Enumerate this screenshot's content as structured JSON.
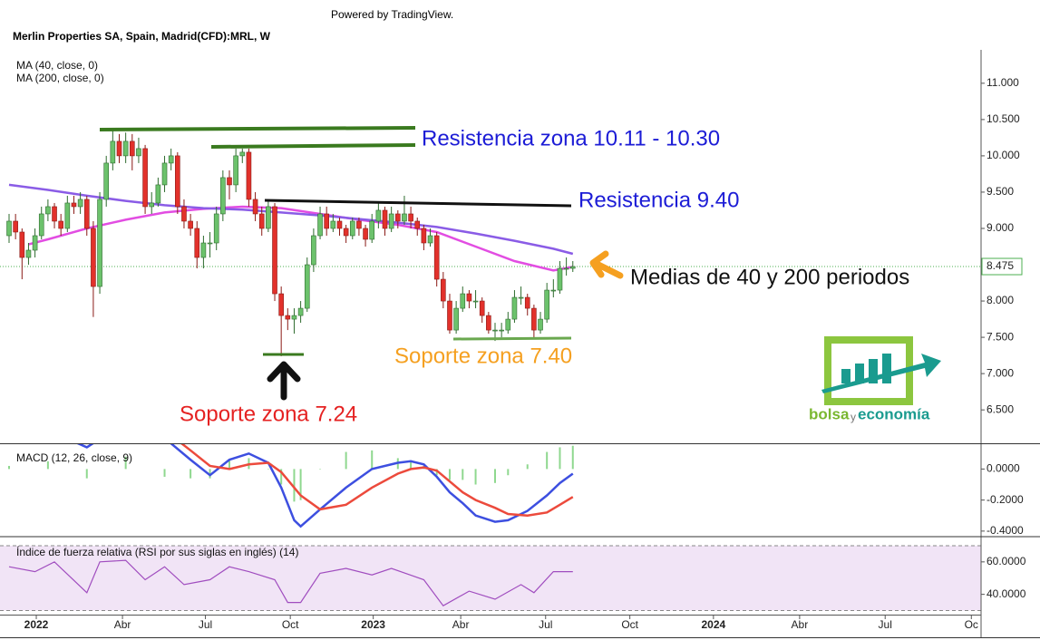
{
  "header": {
    "powered": "Powered by TradingView.",
    "title": "Merlin Properties SA, Spain, Madrid(CFD):MRL, W"
  },
  "logo": {
    "part1": "bolsa",
    "part2": "y",
    "part3": "economía"
  },
  "chart_data": [
    {
      "type": "candlestick",
      "xlim": [
        -1.4,
        150
      ],
      "xticks": [
        {
          "value": 4.2,
          "label": "2022"
        },
        {
          "value": 17.5,
          "label": "Abr"
        },
        {
          "value": 30.3,
          "label": "Jul"
        },
        {
          "value": 43.4,
          "label": "Oct"
        },
        {
          "value": 56.2,
          "label": "2023"
        },
        {
          "value": 69.7,
          "label": "Abr"
        },
        {
          "value": 82.8,
          "label": "Jul"
        },
        {
          "value": 95.8,
          "label": "Oct"
        },
        {
          "value": 108.7,
          "label": "2024"
        },
        {
          "value": 122,
          "label": "Abr"
        },
        {
          "value": 135.2,
          "label": "Jul"
        },
        {
          "value": 148.5,
          "label": "Oc"
        }
      ],
      "ylim": [
        6.04,
        11.46
      ],
      "yticks": [
        {
          "value": 6.5,
          "label": "6.500"
        },
        {
          "value": 7,
          "label": "7.000"
        },
        {
          "value": 7.5,
          "label": "7.500"
        },
        {
          "value": 8,
          "label": "8.000"
        },
        {
          "value": 8.5,
          "label": "8.500"
        },
        {
          "value": 9,
          "label": "9.000"
        },
        {
          "value": 9.5,
          "label": "9.500"
        },
        {
          "value": 10,
          "label": "10.000"
        },
        {
          "value": 10.5,
          "label": "10.500"
        },
        {
          "value": 11,
          "label": "11.000"
        }
      ],
      "colors": {
        "up": "#6cc26c",
        "up_edge": "#2e6b2e",
        "down": "#e2312b",
        "down_edge": "#8a1a16"
      },
      "last_price": {
        "value": 8.475,
        "label": "8.475",
        "color": "#4caf50"
      },
      "candles": [
        [
          8.9,
          9.2,
          8.8,
          9.1
        ],
        [
          9.1,
          9.2,
          8.85,
          8.95
        ],
        [
          8.95,
          9.0,
          8.3,
          8.6
        ],
        [
          8.6,
          8.8,
          8.5,
          8.7
        ],
        [
          8.7,
          9.0,
          8.6,
          8.9
        ],
        [
          8.9,
          9.3,
          8.85,
          9.2
        ],
        [
          9.2,
          9.4,
          9.1,
          9.3
        ],
        [
          9.3,
          9.35,
          9.0,
          9.1
        ],
        [
          9.1,
          9.2,
          8.9,
          9.0
        ],
        [
          9.0,
          9.45,
          8.95,
          9.35
        ],
        [
          9.35,
          9.45,
          9.2,
          9.3
        ],
        [
          9.3,
          9.5,
          9.2,
          9.4
        ],
        [
          9.4,
          9.45,
          8.9,
          9.0
        ],
        [
          9.0,
          9.1,
          7.78,
          8.2
        ],
        [
          8.2,
          9.5,
          8.1,
          9.4
        ],
        [
          9.4,
          10.0,
          9.3,
          9.9
        ],
        [
          9.9,
          10.35,
          9.8,
          10.2
        ],
        [
          10.2,
          10.3,
          9.9,
          10.0
        ],
        [
          10.0,
          10.32,
          9.9,
          10.2
        ],
        [
          10.2,
          10.3,
          9.8,
          10.0
        ],
        [
          10.0,
          10.25,
          9.9,
          10.1
        ],
        [
          10.1,
          10.15,
          9.2,
          9.3
        ],
        [
          9.3,
          9.5,
          9.2,
          9.35
        ],
        [
          9.35,
          9.7,
          9.3,
          9.6
        ],
        [
          9.6,
          10.0,
          9.5,
          9.9
        ],
        [
          9.9,
          10.1,
          9.8,
          10.0
        ],
        [
          10.0,
          10.05,
          9.2,
          9.3
        ],
        [
          9.3,
          9.4,
          9.0,
          9.1
        ],
        [
          9.1,
          9.2,
          8.9,
          9.0
        ],
        [
          9.0,
          9.1,
          8.45,
          8.6
        ],
        [
          8.6,
          8.9,
          8.45,
          8.8
        ],
        [
          8.8,
          8.95,
          8.6,
          8.8
        ],
        [
          8.8,
          9.3,
          8.7,
          9.2
        ],
        [
          9.2,
          9.8,
          9.1,
          9.7
        ],
        [
          9.7,
          9.8,
          9.4,
          9.6
        ],
        [
          9.6,
          10.1,
          9.5,
          10.0
        ],
        [
          10.0,
          10.1,
          9.9,
          10.05
        ],
        [
          10.05,
          10.1,
          9.3,
          9.4
        ],
        [
          9.4,
          9.5,
          9.1,
          9.2
        ],
        [
          9.2,
          9.3,
          8.9,
          9.0
        ],
        [
          9.0,
          9.4,
          8.95,
          9.3
        ],
        [
          9.3,
          9.35,
          8.0,
          8.1
        ],
        [
          8.1,
          8.2,
          7.24,
          7.8
        ],
        [
          7.8,
          7.9,
          7.6,
          7.75
        ],
        [
          7.75,
          7.9,
          7.55,
          7.8
        ],
        [
          7.8,
          8.0,
          7.7,
          7.9
        ],
        [
          7.9,
          8.6,
          7.85,
          8.5
        ],
        [
          8.5,
          9.0,
          8.4,
          8.9
        ],
        [
          8.9,
          9.3,
          8.85,
          9.2
        ],
        [
          9.2,
          9.3,
          8.9,
          9.0
        ],
        [
          9.0,
          9.2,
          8.95,
          9.1
        ],
        [
          9.1,
          9.15,
          8.9,
          9.0
        ],
        [
          9.0,
          9.05,
          8.8,
          8.9
        ],
        [
          8.9,
          9.15,
          8.85,
          9.1
        ],
        [
          9.1,
          9.15,
          8.9,
          9.0
        ],
        [
          9.0,
          9.05,
          8.75,
          8.85
        ],
        [
          8.85,
          9.2,
          8.8,
          9.1
        ],
        [
          9.1,
          9.35,
          9.0,
          9.25
        ],
        [
          9.25,
          9.3,
          8.9,
          9.0
        ],
        [
          9.0,
          9.3,
          8.95,
          9.2
        ],
        [
          9.2,
          9.25,
          9.0,
          9.1
        ],
        [
          9.1,
          9.45,
          9.05,
          9.2
        ],
        [
          9.2,
          9.3,
          9.0,
          9.1
        ],
        [
          9.1,
          9.15,
          8.9,
          9.0
        ],
        [
          9.0,
          9.05,
          8.7,
          8.8
        ],
        [
          8.8,
          9.0,
          8.75,
          8.9
        ],
        [
          8.9,
          8.95,
          8.2,
          8.3
        ],
        [
          8.3,
          8.4,
          7.9,
          8.0
        ],
        [
          8.0,
          8.1,
          7.55,
          7.6
        ],
        [
          7.6,
          8.0,
          7.55,
          7.9
        ],
        [
          7.9,
          8.2,
          7.85,
          8.1
        ],
        [
          8.1,
          8.15,
          7.9,
          8.0
        ],
        [
          8.0,
          8.15,
          7.9,
          8.0
        ],
        [
          8.0,
          8.05,
          7.7,
          7.8
        ],
        [
          7.8,
          7.85,
          7.55,
          7.6
        ],
        [
          7.6,
          7.7,
          7.45,
          7.6
        ],
        [
          7.6,
          7.7,
          7.5,
          7.6
        ],
        [
          7.6,
          7.85,
          7.55,
          7.75
        ],
        [
          7.75,
          8.15,
          7.7,
          8.05
        ],
        [
          8.05,
          8.2,
          7.95,
          8.05
        ],
        [
          8.05,
          8.1,
          7.8,
          7.9
        ],
        [
          7.9,
          7.95,
          7.5,
          7.6
        ],
        [
          7.6,
          7.85,
          7.55,
          7.75
        ],
        [
          7.75,
          8.25,
          7.7,
          8.15
        ],
        [
          8.15,
          8.3,
          8.05,
          8.15
        ],
        [
          8.15,
          8.55,
          8.1,
          8.45
        ],
        [
          8.45,
          8.6,
          8.35,
          8.45
        ],
        [
          8.45,
          8.55,
          8.4,
          8.475
        ]
      ],
      "series": [
        {
          "name": "MA (40, close, 0)",
          "color": "#e24de2",
          "x": [
            3,
            6,
            12,
            18,
            24,
            30,
            36,
            42,
            48,
            54,
            60,
            66,
            72,
            78,
            84,
            87
          ],
          "values": [
            8.78,
            8.85,
            9.0,
            9.12,
            9.22,
            9.27,
            9.3,
            9.28,
            9.2,
            9.12,
            9.05,
            8.95,
            8.75,
            8.55,
            8.42,
            8.47
          ]
        },
        {
          "name": "MA (200, close, 0)",
          "color": "#8a5ce6",
          "x": [
            0,
            6,
            12,
            18,
            24,
            30,
            36,
            42,
            48,
            54,
            60,
            66,
            72,
            78,
            84,
            87
          ],
          "values": [
            9.6,
            9.53,
            9.45,
            9.38,
            9.32,
            9.28,
            9.26,
            9.22,
            9.18,
            9.13,
            9.08,
            9.02,
            8.93,
            8.83,
            8.72,
            8.65
          ]
        }
      ],
      "annotations": [
        {
          "text": "Resistencia zona 10.11 - 10.30",
          "color": "#1c1cd6"
        },
        {
          "text": "Resistencia 9.40",
          "color": "#1c1cd6"
        },
        {
          "text": "Medias de 40 y 200 periodos",
          "color": "#111111"
        },
        {
          "text": "Soporte zona 7.40",
          "color": "#f5a020"
        },
        {
          "text": "Soporte zona 7.24",
          "color": "#e52222"
        }
      ]
    },
    {
      "type": "macd",
      "title": "MACD (12, 26, close, 9)",
      "xlim": [
        -1.4,
        150
      ],
      "ylim": [
        -0.43,
        0.16
      ],
      "yticks": [
        {
          "value": -0.4,
          "label": "-0.4000"
        },
        {
          "value": -0.2,
          "label": "-0.2000"
        },
        {
          "value": 0,
          "label": "0.0000"
        }
      ],
      "x": [
        0,
        6,
        12,
        18,
        24,
        28,
        31,
        34,
        37,
        40,
        42,
        44,
        45,
        48,
        52,
        56,
        60,
        62,
        64,
        66,
        68,
        70,
        72,
        75,
        77,
        80,
        83,
        85,
        87
      ],
      "histogram_color": "#8fd88f",
      "histogram": [
        0.02,
        0.05,
        -0.06,
        0.08,
        -0.05,
        -0.06,
        -0.06,
        0.06,
        0.07,
        0,
        -0.1,
        -0.21,
        -0.2,
        0,
        0.11,
        0.12,
        0.07,
        0.05,
        0.02,
        -0.04,
        -0.07,
        -0.07,
        -0.1,
        -0.09,
        -0.04,
        0.03,
        0.11,
        0.14,
        0.15
      ],
      "series": [
        {
          "color": "#3d4fe0",
          "values": [
            0.2,
            0.25,
            0.14,
            0.3,
            0.2,
            0.06,
            -0.04,
            0.06,
            0.1,
            0.04,
            -0.12,
            -0.33,
            -0.37,
            -0.26,
            -0.12,
            0.0,
            0.04,
            0.05,
            0.03,
            -0.05,
            -0.15,
            -0.22,
            -0.3,
            -0.34,
            -0.33,
            -0.27,
            -0.17,
            -0.09,
            -0.03
          ]
        },
        {
          "color": "#ec4a3c",
          "values": [
            0.18,
            0.2,
            0.2,
            0.22,
            0.25,
            0.12,
            0.02,
            0.0,
            0.03,
            0.04,
            -0.02,
            -0.12,
            -0.17,
            -0.26,
            -0.23,
            -0.12,
            -0.03,
            0.0,
            0.01,
            -0.01,
            -0.08,
            -0.15,
            -0.2,
            -0.25,
            -0.29,
            -0.3,
            -0.28,
            -0.23,
            -0.18
          ]
        }
      ]
    },
    {
      "type": "rsi",
      "title": "Índice de fuerza relativa (RSI por sus siglas en inglés) (14)",
      "xlim": [
        -1.4,
        150
      ],
      "ylim": [
        27.5,
        75
      ],
      "yticks": [
        {
          "value": 40,
          "label": "40.0000"
        },
        {
          "value": 60,
          "label": "60.0000"
        }
      ],
      "bands": [
        30,
        70
      ],
      "band_color": "#f1e4f6",
      "color": "#a04dbf",
      "x": [
        0,
        4,
        7,
        12,
        14,
        18,
        21,
        24,
        27,
        31,
        34,
        37,
        41,
        43,
        45,
        48,
        52,
        56,
        59,
        64,
        67,
        71,
        75,
        79,
        81,
        84,
        87
      ],
      "values": [
        57,
        54,
        60,
        41,
        60,
        61,
        49,
        57,
        46,
        49,
        57,
        54,
        49,
        35,
        35,
        53,
        56,
        52,
        56,
        49,
        33,
        42,
        37,
        46,
        41,
        54,
        54
      ]
    }
  ]
}
